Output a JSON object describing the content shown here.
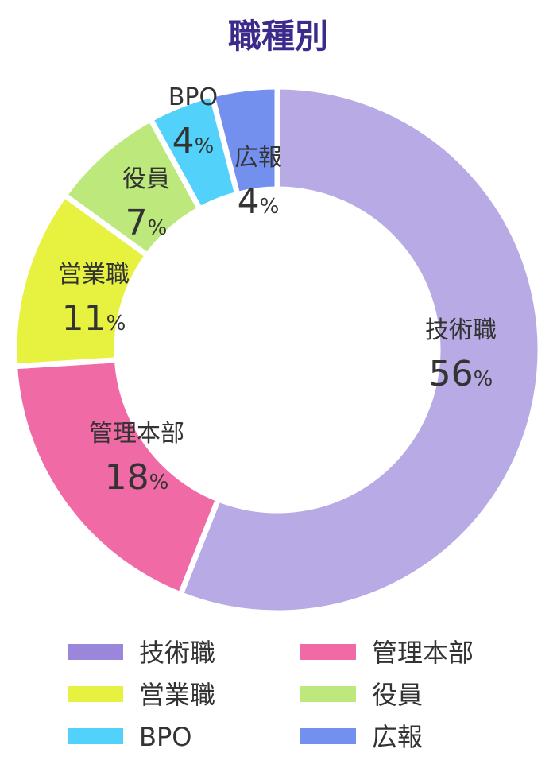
{
  "chart_data": {
    "type": "pie",
    "title": "職種別",
    "unit": "%",
    "categories": [
      "技術職",
      "管理本部",
      "営業職",
      "役員",
      "BPO",
      "広報"
    ],
    "values": [
      56,
      18,
      11,
      7,
      4,
      4
    ],
    "colors": [
      "#b7aae5",
      "#f06ba5",
      "#e6f23f",
      "#bde87c",
      "#52d2fb",
      "#7390ee"
    ],
    "legend": {
      "placement": "bottom",
      "items": [
        {
          "label": "技術職",
          "color": "#9a86db"
        },
        {
          "label": "管理本部",
          "color": "#f06ba5"
        },
        {
          "label": "営業職",
          "color": "#e6f23f"
        },
        {
          "label": "役員",
          "color": "#bde87c"
        },
        {
          "label": "BPO",
          "color": "#52d2fb"
        },
        {
          "label": "広報",
          "color": "#7390ee"
        }
      ]
    }
  }
}
